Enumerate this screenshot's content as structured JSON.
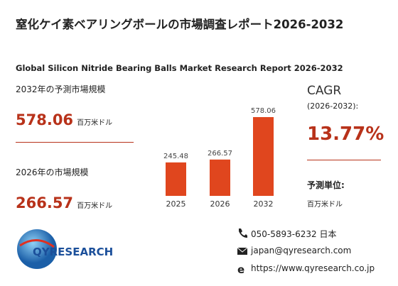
{
  "header": {
    "title": "窒化ケイ素ベアリングボールの市場調査レポート2026-2032",
    "subtitle": "Global Silicon Nitride Bearing Balls Market Research Report 2026-2032"
  },
  "stats": [
    {
      "label": "2032年の予測市場規模",
      "value": "578.06",
      "unit": "百万米ドル"
    },
    {
      "label": "2026年の市場規模",
      "value": "266.57",
      "unit": "百万米ドル"
    }
  ],
  "chart_data": {
    "type": "bar",
    "categories": [
      "2025",
      "2026",
      "2032"
    ],
    "values": [
      245.48,
      266.57,
      578.06
    ],
    "color": "#e0461e"
  },
  "cagr": {
    "label": "CAGR",
    "period": "(2026-2032):",
    "value": "13.77%",
    "unit_label": "予測単位:",
    "unit": "百万米ドル"
  },
  "logo": {
    "text": "QYRESEARCH"
  },
  "contact": {
    "phone": "050-5893-6232 日本",
    "email": "japan@qyresearch.com",
    "web": "https://www.qyresearch.co.jp"
  }
}
